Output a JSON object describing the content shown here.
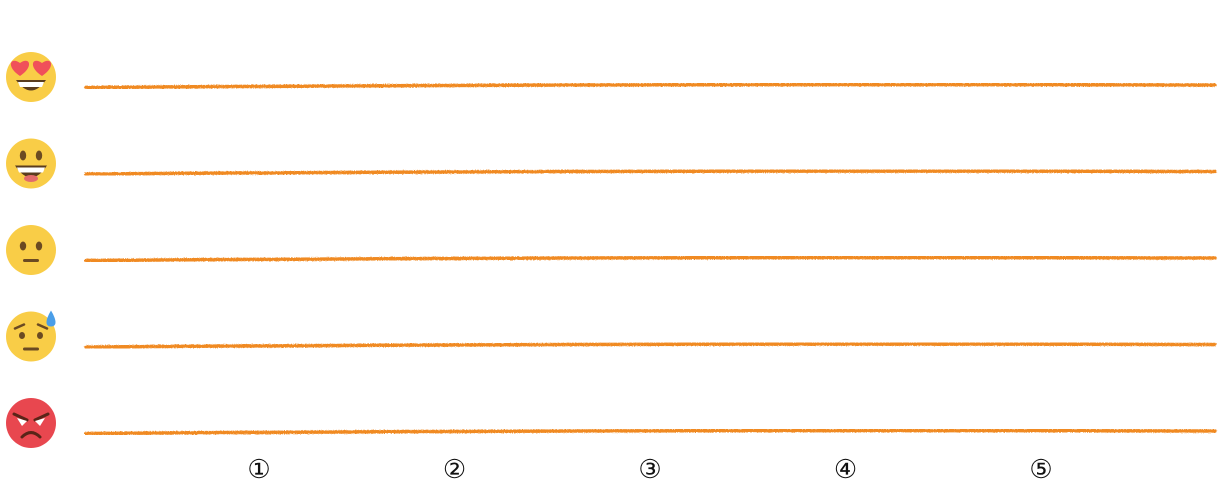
{
  "chart_data": {
    "type": "line",
    "title": "",
    "xlabel": "",
    "ylabel": "",
    "x_categories": [
      "①",
      "②",
      "③",
      "④",
      "⑤"
    ],
    "y_levels": [
      {
        "icon": "heart-eyes-face-icon"
      },
      {
        "icon": "grinning-face-icon"
      },
      {
        "icon": "neutral-face-icon"
      },
      {
        "icon": "anxious-sweat-face-icon"
      },
      {
        "icon": "angry-face-icon"
      }
    ],
    "series": [],
    "grid": true,
    "legend": "none"
  },
  "colors": {
    "line": "#f08a24",
    "face_yellow": "#f9cd47",
    "face_red": "#e8474f",
    "heart": "#f0505a",
    "sweat": "#4a9ee8",
    "feature_dark": "#6b4a22"
  }
}
